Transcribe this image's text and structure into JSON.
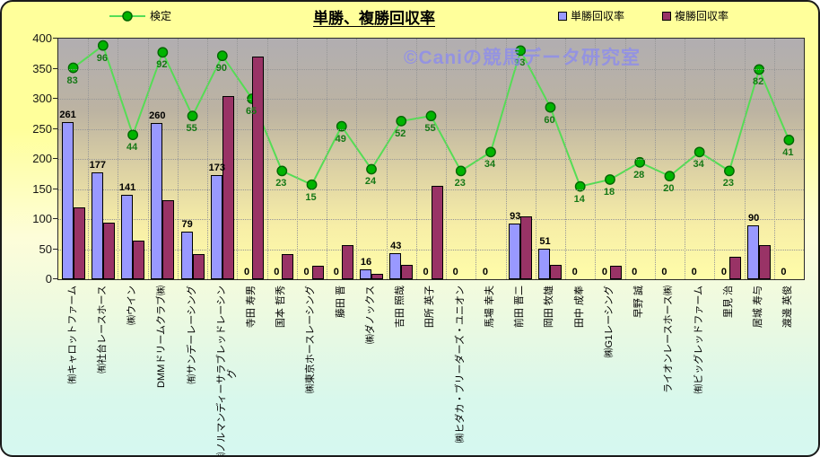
{
  "title": "単勝、複勝回収率",
  "watermark": "©Caniの競馬データ研究室",
  "legend": {
    "line_label": "検定",
    "win_label": "単勝回収率",
    "place_label": "複勝回収率"
  },
  "colors": {
    "win_bar": "#9999FF",
    "place_bar": "#993366",
    "line": "#55DD55",
    "marker_fill": "#00B400",
    "marker_edge": "#006600",
    "line_label_text": "#157815",
    "bar_label_text": "#000000"
  },
  "chart_data": {
    "type": "bar",
    "title": "単勝、複勝回収率",
    "categories": [
      "㈲キャロットファーム",
      "㈲社台レースホース",
      "㈱ウイン",
      "DMMドリームクラブ㈱",
      "㈲サンデーレーシング",
      "㈱ノルマンディーサラブレッドレーシン\nグ",
      "寺田 寿男",
      "国本 哲秀",
      "㈱東京ホースレーシング",
      "藤田 晋",
      "㈱ダノックス",
      "吉田 照哉",
      "田所 英子",
      "㈱ヒダカ・ブリーダーズ・ユニオン",
      "馬場 幸夫",
      "前田 晋二",
      "岡田 牧雄",
      "田中 成奉",
      "㈱G1レーシング",
      "早野 誠",
      "ライオンレースホース㈱",
      "㈲ビッグレッドファーム",
      "里見 治",
      "居城 寿与",
      "渡邊 英俊"
    ],
    "series": [
      {
        "name": "単勝回収率",
        "type": "bar",
        "axis": "primary",
        "color": "#9999FF",
        "data_labels": true,
        "values": [
          261,
          177,
          141,
          260,
          79,
          173,
          0,
          0,
          0,
          0,
          16,
          43,
          0,
          0,
          0,
          93,
          51,
          0,
          0,
          0,
          0,
          0,
          0,
          90,
          0
        ]
      },
      {
        "name": "複勝回収率",
        "type": "bar",
        "axis": "primary",
        "color": "#993366",
        "data_labels": false,
        "values": [
          119,
          94,
          64,
          131,
          42,
          305,
          370,
          42,
          22,
          57,
          9,
          24,
          155,
          0,
          0,
          105,
          24,
          0,
          22,
          0,
          0,
          0,
          37,
          57,
          0
        ]
      },
      {
        "name": "検定",
        "type": "line",
        "axis": "secondary",
        "color": "#55DD55",
        "data_labels": true,
        "values": [
          83,
          96,
          44,
          92,
          55,
          90,
          65,
          23,
          15,
          49,
          24,
          52,
          55,
          23,
          34,
          93,
          60,
          14,
          18,
          28,
          20,
          34,
          23,
          82,
          41
        ]
      }
    ],
    "ylim": [
      0,
      400
    ],
    "yticks": [
      0,
      50,
      100,
      150,
      200,
      250,
      300,
      350,
      400
    ],
    "y2lim": [
      -40,
      100
    ],
    "grid": "dotted",
    "legend_position": "top"
  }
}
